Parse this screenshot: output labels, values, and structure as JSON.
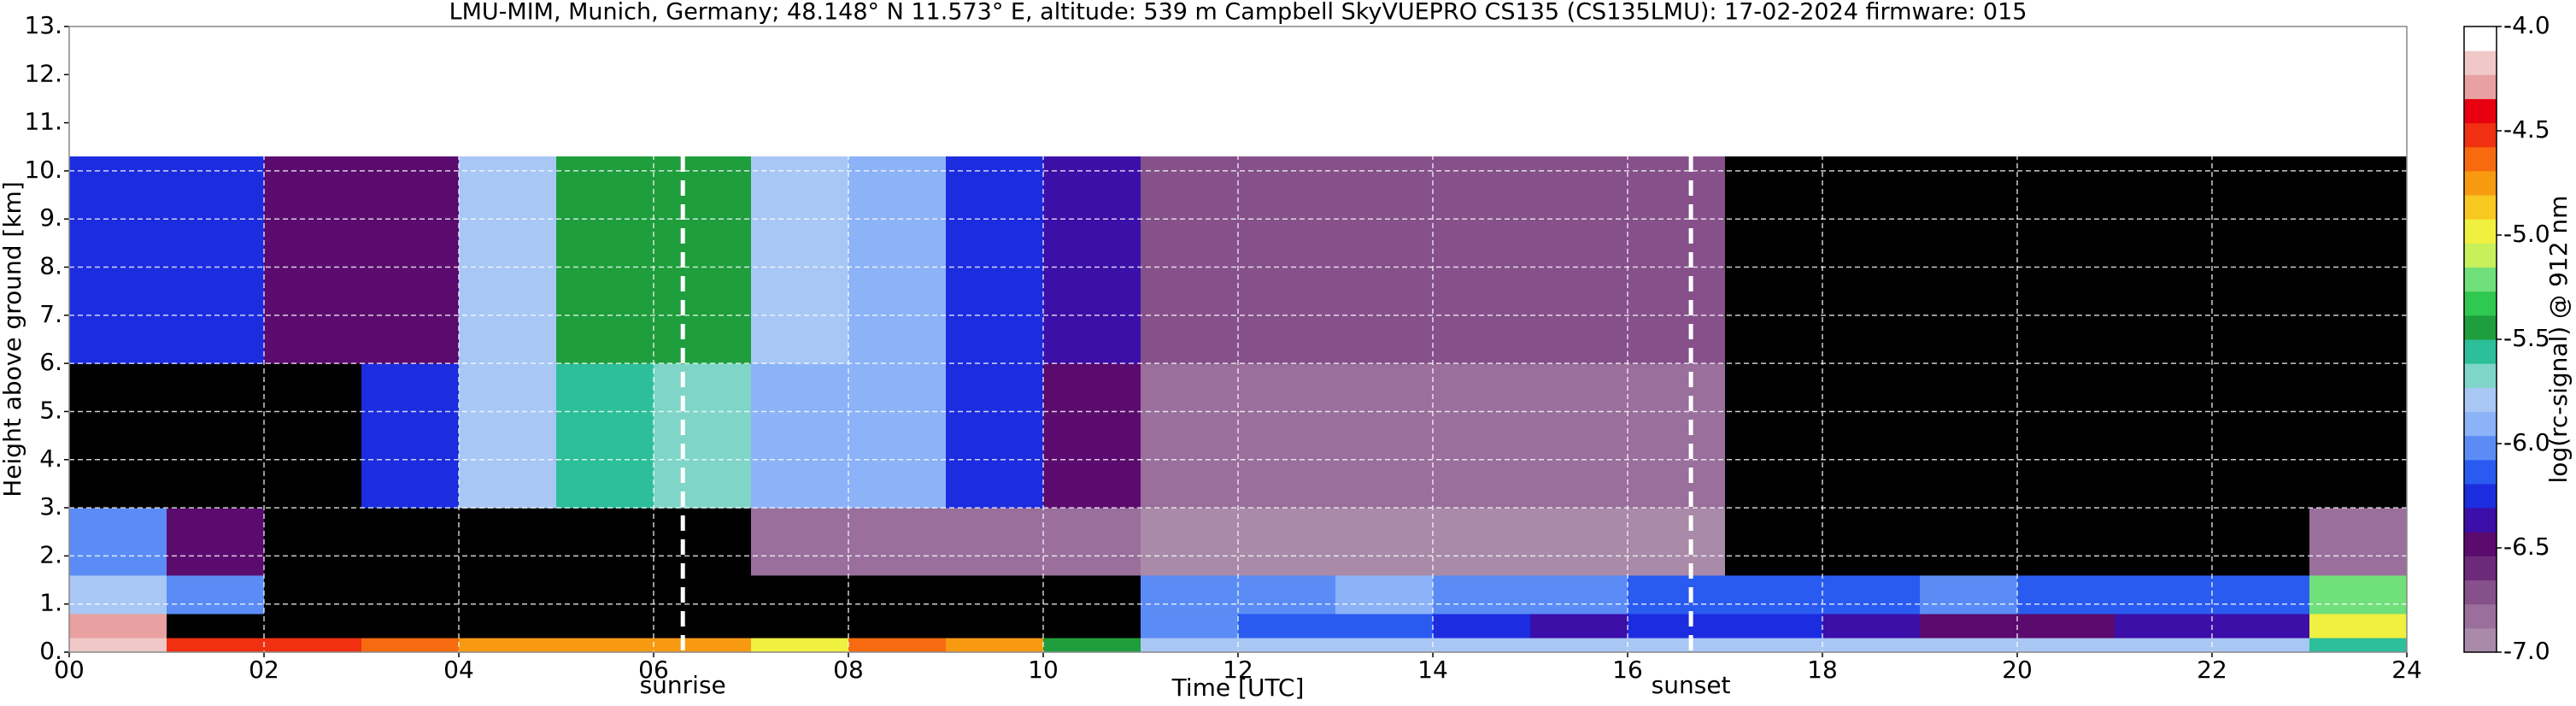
{
  "chart_data": {
    "type": "heatmap",
    "title": "LMU-MIM, Munich, Germany; 48.148° N 11.573° E, altitude: 539 m    Campbell SkyVUEPRO CS135 (CS135LMU): 17-02-2024    firmware: 015",
    "x_label": "Time [UTC]",
    "y_label": "Height above ground [km]",
    "colorbar_label": "log(rc-signal) @ 912 nm",
    "xlim": [
      0,
      24
    ],
    "ylim": [
      0,
      13
    ],
    "xticks": [
      {
        "value": 0,
        "label": "00"
      },
      {
        "value": 2,
        "label": "02"
      },
      {
        "value": 4,
        "label": "04"
      },
      {
        "value": 6,
        "label": "06"
      },
      {
        "value": 8,
        "label": "08"
      },
      {
        "value": 10,
        "label": "10"
      },
      {
        "value": 12,
        "label": "12"
      },
      {
        "value": 14,
        "label": "14"
      },
      {
        "value": 16,
        "label": "16"
      },
      {
        "value": 18,
        "label": "18"
      },
      {
        "value": 20,
        "label": "20"
      },
      {
        "value": 22,
        "label": "22"
      },
      {
        "value": 24,
        "label": "24"
      }
    ],
    "yticks": [
      {
        "value": 0,
        "label": "0."
      },
      {
        "value": 1,
        "label": "1."
      },
      {
        "value": 2,
        "label": "2."
      },
      {
        "value": 3,
        "label": "3."
      },
      {
        "value": 4,
        "label": "4."
      },
      {
        "value": 5,
        "label": "5."
      },
      {
        "value": 6,
        "label": "6."
      },
      {
        "value": 7,
        "label": "7."
      },
      {
        "value": 8,
        "label": "8."
      },
      {
        "value": 9,
        "label": "9."
      },
      {
        "value": 10,
        "label": "10."
      },
      {
        "value": 11,
        "label": "11."
      },
      {
        "value": 12,
        "label": "12."
      },
      {
        "value": 13,
        "label": "13."
      }
    ],
    "grid": true,
    "clim": [
      -7,
      -4
    ],
    "cticks": [
      {
        "value": -7,
        "label": "-7.0"
      },
      {
        "value": -6.5,
        "label": "-6.5"
      },
      {
        "value": -6,
        "label": "-6.0"
      },
      {
        "value": -5.5,
        "label": "-5.5"
      },
      {
        "value": -5,
        "label": "-5.0"
      },
      {
        "value": -4.5,
        "label": "-4.5"
      },
      {
        "value": -4,
        "label": "-4.0"
      }
    ],
    "colorscale": [
      "#a98aa8",
      "#9a6f9c",
      "#86508b",
      "#6e2a7a",
      "#5b0b6e",
      "#3b0fa8",
      "#1c2de0",
      "#2a5bf0",
      "#5b8cf5",
      "#8cb2f7",
      "#a9c7f4",
      "#7fd6c8",
      "#2cbf9a",
      "#1e9e3c",
      "#2fc850",
      "#6fe07a",
      "#c8f05a",
      "#f0f040",
      "#f7c820",
      "#f79a10",
      "#f76a10",
      "#f03010",
      "#e80010",
      "#e8a0a0",
      "#f0c8c8",
      "#ffffff"
    ],
    "under_color": "#000000",
    "x_bins": [
      0,
      1,
      2,
      3,
      4,
      5,
      6,
      7,
      8,
      9,
      10,
      11,
      12,
      13,
      14,
      15,
      16,
      17,
      18,
      19,
      20,
      21,
      22,
      23,
      24
    ],
    "y_bins": [
      0,
      0.3,
      0.8,
      1.6,
      3,
      6,
      10.3
    ],
    "z": [
      [
        -4.2,
        -4.5,
        -4.5,
        -4.6,
        -4.7,
        -4.8,
        -4.8,
        -5.0,
        -4.6,
        -4.7,
        -5.5,
        -5.8,
        -5.8,
        -5.8,
        -5.8,
        -5.8,
        -5.8,
        -5.8,
        -5.8,
        -5.8,
        -5.8,
        -5.8,
        -5.8,
        -5.6
      ],
      [
        -4.3,
        -7.5,
        -7.5,
        -7.5,
        -7.5,
        -7.5,
        -7.5,
        -7.5,
        -7.5,
        -7.5,
        -7.5,
        -6.0,
        -6.1,
        -6.1,
        -6.3,
        -6.4,
        -6.2,
        -6.3,
        -6.4,
        -6.5,
        -6.5,
        -6.4,
        -6.4,
        -5.0
      ],
      [
        -5.8,
        -6.0,
        -7.5,
        -7.5,
        -7.5,
        -7.5,
        -7.5,
        -7.5,
        -7.5,
        -7.5,
        -7.5,
        -6.0,
        -6.0,
        -5.9,
        -6.0,
        -6.0,
        -6.1,
        -6.1,
        -6.1,
        -6.0,
        -6.1,
        -6.1,
        -6.1,
        -5.2
      ],
      [
        -6.0,
        -6.5,
        -7.3,
        -7.3,
        -7.3,
        -7.3,
        -7.3,
        -6.8,
        -6.8,
        -6.8,
        -6.8,
        -6.9,
        -6.9,
        -6.9,
        -6.9,
        -6.9,
        -6.9,
        -7.1,
        -7.1,
        -7.1,
        -7.1,
        -7.1,
        -7.1,
        -6.8
      ],
      [
        -7.5,
        -7.5,
        -7.5,
        -6.2,
        -5.8,
        -5.6,
        -5.7,
        -5.9,
        -5.9,
        -6.2,
        -6.5,
        -6.8,
        -6.8,
        -6.8,
        -6.8,
        -6.8,
        -6.8,
        -7.1,
        -7.1,
        -7.1,
        -7.1,
        -7.1,
        -7.1,
        -7.1
      ],
      [
        -6.2,
        -6.2,
        -6.5,
        -6.5,
        -5.8,
        -5.5,
        -5.5,
        -5.8,
        -5.9,
        -6.3,
        -6.4,
        -6.7,
        -6.7,
        -6.7,
        -6.7,
        -6.7,
        -6.7,
        -7.1,
        -7.1,
        -7.1,
        -7.1,
        -7.1,
        -7.1,
        -7.1
      ]
    ],
    "annotations": [
      {
        "x": 6.3,
        "label": "sunrise"
      },
      {
        "x": 16.65,
        "label": "sunset"
      }
    ]
  }
}
